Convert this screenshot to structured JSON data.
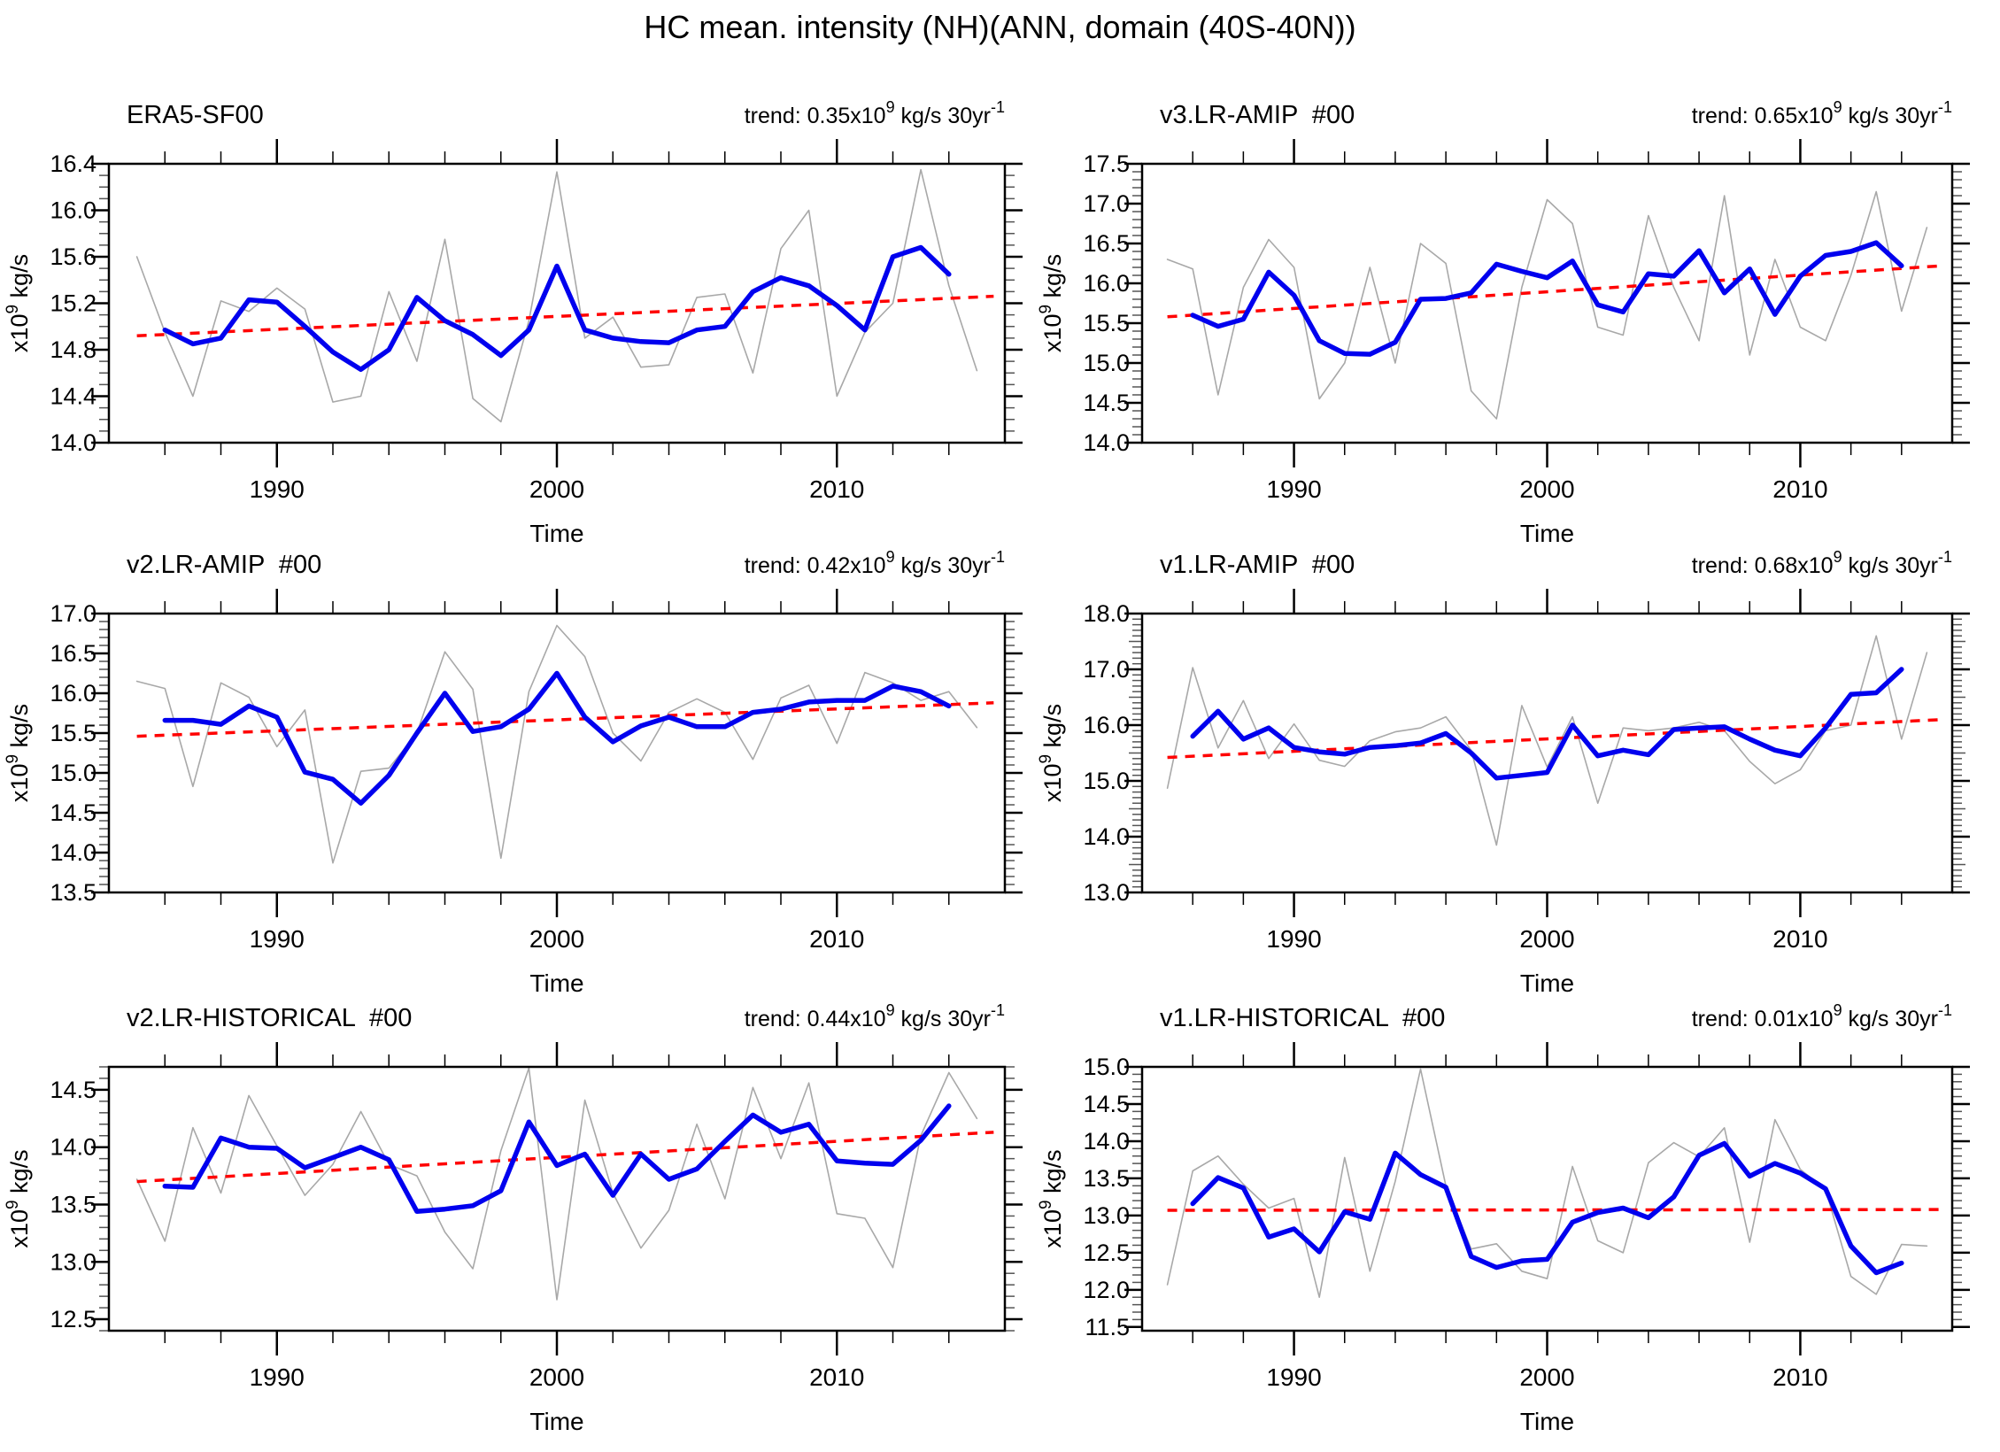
{
  "title": "HC mean. intensity (NH)(ANN, domain (40S-40N))",
  "chart_data": {
    "type": "line",
    "suptitle": "HC mean. intensity (NH)(ANN, domain (40S-40N))",
    "xlabel": "Time",
    "ylabel_parts": {
      "base": "x10",
      "exp": "9",
      "unit": " kg/s"
    },
    "trend_template": {
      "prefix": "trend: ",
      "exp_base": "x10",
      "exp": "9",
      "unit": " kg/s 30yr",
      "unit_exp": "-1"
    },
    "xlim": [
      1984,
      2016
    ],
    "xticks": [
      1990,
      2000,
      2010
    ],
    "xtick_minor_step": 2,
    "years_annual_start": 1985,
    "years_smoothed_start": 1986,
    "legend": [
      "annual mean (thin gray)",
      "smoothed (thick blue)",
      "linear trend (red dashed)"
    ],
    "colors": {
      "annual": "#a8a8a8",
      "smoothed": "#0000ee",
      "trend": "#ff0000",
      "frame": "#000000"
    },
    "panels": [
      {
        "name": "ERA5-SF00",
        "trend_value": "0.35",
        "ylim": [
          14.0,
          16.4
        ],
        "yticks": [
          14.0,
          14.4,
          14.8,
          15.2,
          15.6,
          16.0,
          16.4
        ],
        "ymedium": [],
        "annual": [
          15.6,
          14.95,
          14.4,
          15.22,
          15.13,
          15.33,
          15.15,
          14.35,
          14.4,
          15.3,
          14.7,
          15.75,
          14.38,
          14.18,
          15.05,
          16.33,
          14.9,
          15.08,
          14.65,
          14.67,
          15.25,
          15.28,
          14.6,
          15.67,
          16.0,
          14.4,
          14.95,
          15.2,
          16.35,
          15.35,
          14.62
        ],
        "smoothed": [
          14.97,
          14.85,
          14.9,
          15.23,
          15.21,
          15.0,
          14.78,
          14.63,
          14.8,
          15.25,
          15.05,
          14.93,
          14.75,
          14.97,
          15.52,
          14.97,
          14.9,
          14.87,
          14.86,
          14.97,
          15.0,
          15.3,
          15.42,
          15.35,
          15.18,
          14.97,
          15.6,
          15.68,
          15.45
        ],
        "trend_line": [
          14.92,
          15.26
        ]
      },
      {
        "name": "v3.LR-AMIP  #00",
        "trend_value": "0.65",
        "ylim": [
          14.0,
          17.5
        ],
        "yticks": [
          14.0,
          14.5,
          15.0,
          15.5,
          16.0,
          16.5,
          17.0,
          17.5
        ],
        "ymedium": [],
        "annual": [
          16.3,
          16.18,
          14.6,
          15.95,
          16.55,
          16.2,
          14.55,
          15.0,
          16.2,
          15.0,
          16.5,
          16.25,
          14.65,
          14.3,
          15.95,
          17.05,
          16.75,
          15.45,
          15.35,
          16.85,
          15.95,
          15.28,
          17.1,
          15.1,
          16.3,
          15.45,
          15.28,
          16.1,
          17.15,
          15.65,
          16.7
        ],
        "smoothed": [
          15.6,
          15.46,
          15.55,
          16.14,
          15.85,
          15.28,
          15.12,
          15.11,
          15.26,
          15.8,
          15.81,
          15.88,
          16.24,
          16.15,
          16.07,
          16.28,
          15.73,
          15.64,
          16.12,
          16.09,
          16.41,
          15.88,
          16.18,
          15.61,
          16.09,
          16.35,
          16.4,
          16.51,
          16.22
        ],
        "trend_line": [
          15.58,
          16.22
        ]
      },
      {
        "name": "v2.LR-AMIP  #00",
        "trend_value": "0.42",
        "ylim": [
          13.5,
          17.0
        ],
        "yticks": [
          13.5,
          14.0,
          14.5,
          15.0,
          15.5,
          16.0,
          16.5,
          17.0
        ],
        "ymedium": [],
        "annual": [
          16.15,
          16.06,
          14.83,
          16.13,
          15.95,
          15.33,
          15.79,
          13.87,
          15.02,
          15.06,
          15.5,
          16.52,
          16.05,
          13.93,
          16.02,
          16.85,
          16.46,
          15.5,
          15.15,
          15.76,
          15.93,
          15.76,
          15.17,
          15.94,
          16.1,
          15.37,
          16.26,
          16.13,
          15.91,
          16.02,
          15.57
        ],
        "smoothed": [
          15.66,
          15.66,
          15.61,
          15.84,
          15.7,
          15.01,
          14.92,
          14.62,
          14.97,
          15.5,
          16.0,
          15.52,
          15.58,
          15.8,
          16.25,
          15.7,
          15.39,
          15.59,
          15.7,
          15.58,
          15.58,
          15.76,
          15.8,
          15.89,
          15.91,
          15.91,
          16.09,
          16.02,
          15.84
        ],
        "trend_line": [
          15.46,
          15.88
        ]
      },
      {
        "name": "v1.LR-AMIP  #00",
        "trend_value": "0.68",
        "ylim": [
          13.0,
          18.0
        ],
        "yticks": [
          13.0,
          14.0,
          15.0,
          16.0,
          17.0,
          18.0
        ],
        "ymedium": [
          13.5,
          14.5,
          15.5,
          16.5,
          17.5
        ],
        "annual": [
          14.87,
          17.03,
          15.59,
          16.44,
          15.4,
          16.02,
          15.37,
          15.26,
          15.72,
          15.88,
          15.95,
          16.15,
          15.55,
          13.85,
          16.35,
          15.25,
          16.15,
          14.6,
          15.95,
          15.9,
          15.95,
          16.05,
          15.9,
          15.35,
          14.95,
          15.2,
          15.9,
          16.0,
          17.6,
          15.75,
          17.3
        ],
        "smoothed": [
          15.8,
          16.25,
          15.75,
          15.95,
          15.6,
          15.52,
          15.48,
          15.6,
          15.63,
          15.68,
          15.85,
          15.5,
          15.05,
          15.1,
          15.15,
          16.0,
          15.45,
          15.55,
          15.47,
          15.92,
          15.95,
          15.97,
          15.75,
          15.55,
          15.45,
          15.95,
          16.55,
          16.58,
          17.0
        ],
        "trend_line": [
          15.42,
          16.1
        ]
      },
      {
        "name": "v2.LR-HISTORICAL  #00",
        "trend_value": "0.44",
        "ylim": [
          12.4,
          14.7
        ],
        "yticks": [
          12.5,
          13.0,
          13.5,
          14.0,
          14.5
        ],
        "ymedium": [],
        "annual": [
          13.72,
          13.18,
          14.17,
          13.6,
          14.45,
          14.01,
          13.58,
          13.85,
          14.31,
          13.85,
          13.75,
          13.26,
          12.94,
          13.97,
          14.69,
          12.67,
          14.41,
          13.6,
          13.12,
          13.45,
          14.2,
          13.55,
          14.52,
          13.9,
          14.56,
          13.42,
          13.38,
          12.95,
          14.1,
          14.65,
          14.25
        ],
        "smoothed": [
          13.66,
          13.65,
          14.08,
          14.0,
          13.99,
          13.82,
          13.91,
          14.0,
          13.89,
          13.44,
          13.46,
          13.49,
          13.62,
          14.22,
          13.84,
          13.94,
          13.58,
          13.94,
          13.72,
          13.81,
          14.05,
          14.28,
          14.13,
          14.2,
          13.88,
          13.86,
          13.85,
          14.06,
          14.36
        ],
        "trend_line": [
          13.7,
          14.13
        ]
      },
      {
        "name": "v1.LR-HISTORICAL  #00",
        "trend_value": "0.01",
        "ylim": [
          11.45,
          15.0
        ],
        "yticks": [
          11.5,
          12.0,
          12.5,
          13.0,
          13.5,
          14.0,
          14.5,
          15.0
        ],
        "ymedium": [],
        "annual": [
          12.07,
          13.6,
          13.8,
          13.42,
          13.1,
          13.23,
          11.9,
          13.78,
          12.25,
          13.46,
          14.97,
          13.4,
          12.55,
          12.62,
          12.25,
          12.15,
          13.66,
          12.66,
          12.5,
          13.71,
          13.98,
          13.79,
          14.18,
          12.64,
          14.29,
          13.62,
          13.35,
          12.18,
          11.94,
          12.61,
          12.59
        ],
        "smoothed": [
          13.16,
          13.51,
          13.37,
          12.71,
          12.82,
          12.51,
          13.05,
          12.95,
          13.84,
          13.55,
          13.38,
          12.45,
          12.3,
          12.39,
          12.41,
          12.91,
          13.04,
          13.1,
          12.97,
          13.25,
          13.81,
          13.97,
          13.53,
          13.7,
          13.57,
          13.36,
          12.59,
          12.23,
          12.36
        ],
        "trend_line": [
          13.07,
          13.08
        ]
      }
    ]
  }
}
